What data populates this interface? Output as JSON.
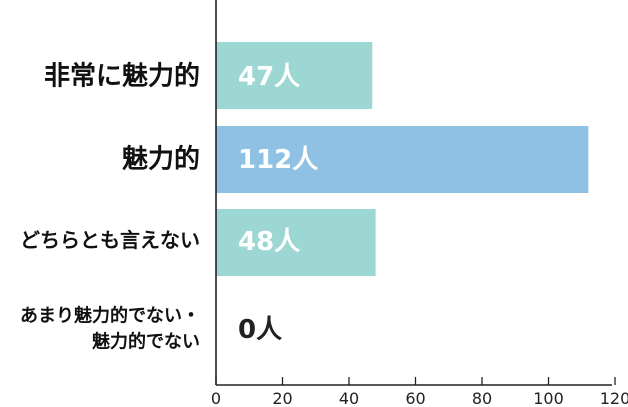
{
  "chart_data": {
    "type": "bar",
    "orientation": "horizontal",
    "categories": [
      [
        "非常に魅力的"
      ],
      [
        "魅力的"
      ],
      [
        "どちらとも言えない"
      ],
      [
        "あまり魅力的でない・",
        "魅力的でない"
      ]
    ],
    "values": [
      47,
      112,
      48,
      0
    ],
    "data_labels": [
      "47人",
      "112人",
      "48人",
      "0人"
    ],
    "bar_colors": [
      "#9dd7d3",
      "#8ec1e3",
      "#9dd7d3",
      "#9dd7d3"
    ],
    "x_ticks": [
      "0",
      "20",
      "40",
      "60",
      "80",
      "100",
      "120"
    ],
    "xlim": [
      0,
      120
    ],
    "title": "",
    "xlabel": "",
    "ylabel": "",
    "grid": false,
    "legend": "none"
  }
}
